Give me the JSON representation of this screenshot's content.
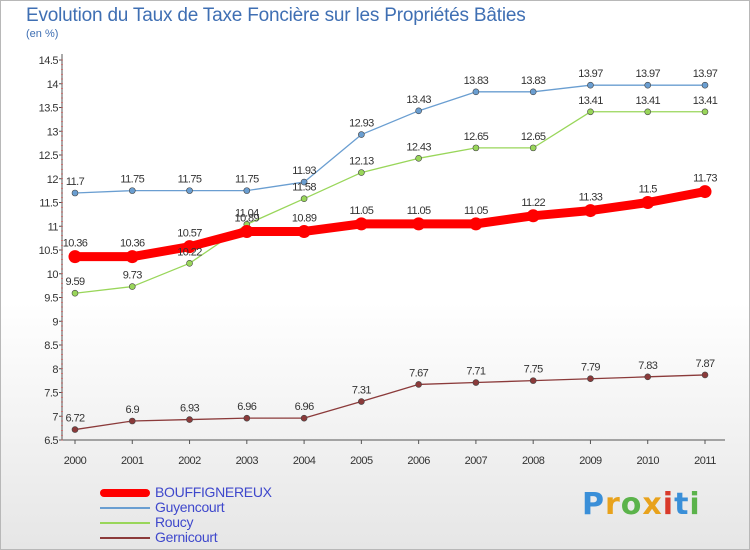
{
  "title": "Evolution du Taux de Taxe Foncière sur les Propriétés Bâties",
  "subtitle": "(en %)",
  "logo": {
    "text": "Proxiti",
    "colors": [
      "#3a8fd8",
      "#e8a21c",
      "#5bb34b",
      "#e8a21c",
      "#d93a2b",
      "#3a8fd8",
      "#5bb34b"
    ]
  },
  "chart_data": {
    "type": "line",
    "title": "Evolution du Taux de Taxe Foncière sur les Propriétés Bâties",
    "ylabel": "(en %)",
    "xlabel": "",
    "ylim": [
      6.5,
      14.5
    ],
    "grid": false,
    "legend_position": "bottom",
    "x": [
      "2000",
      "2001",
      "2002",
      "2003",
      "2004",
      "2005",
      "2006",
      "2007",
      "2008",
      "2009",
      "2010",
      "2011"
    ],
    "y_ticks": [
      "6.5",
      "7",
      "7.5",
      "8",
      "8.5",
      "9",
      "9.5",
      "10",
      "10.5",
      "11",
      "11.5",
      "12",
      "12.5",
      "13",
      "13.5",
      "14",
      "14.5"
    ],
    "series": [
      {
        "name": "BOUFFIGNEREUX",
        "color": "#ff0000",
        "values": [
          10.36,
          10.36,
          10.57,
          10.89,
          10.89,
          11.05,
          11.05,
          11.05,
          11.22,
          11.33,
          11.5,
          11.73
        ],
        "labels": [
          "10.36",
          "10.36",
          "10.57",
          "10.89",
          "10.89",
          "11.05",
          "11.05",
          "11.05",
          "11.22",
          "11.33",
          "11.5",
          "11.73"
        ]
      },
      {
        "name": "Guyencourt",
        "color": "#6a9ed1",
        "values": [
          11.7,
          11.75,
          11.75,
          11.75,
          11.93,
          12.93,
          13.43,
          13.83,
          13.83,
          13.97,
          13.97,
          13.97
        ],
        "labels": [
          "11.7",
          "11.75",
          "11.75",
          "11.75",
          "11.93",
          "12.93",
          "13.43",
          "13.83",
          "13.83",
          "13.97",
          "13.97",
          "13.97"
        ]
      },
      {
        "name": "Roucy",
        "color": "#99d65a",
        "values": [
          9.59,
          9.73,
          10.22,
          11.04,
          11.58,
          12.13,
          12.43,
          12.65,
          12.65,
          13.41,
          13.41,
          13.41
        ],
        "labels": [
          "9.59",
          "9.73",
          "10.22",
          "11.04",
          "11.58",
          "12.13",
          "12.43",
          "12.65",
          "12.65",
          "13.41",
          "13.41",
          "13.41"
        ]
      },
      {
        "name": "Gernicourt",
        "color": "#8b3a3a",
        "values": [
          6.72,
          6.9,
          6.93,
          6.96,
          6.96,
          7.31,
          7.67,
          7.71,
          7.75,
          7.79,
          7.83,
          7.87
        ],
        "labels": [
          "6.72",
          "6.9",
          "6.93",
          "6.96",
          "6.96",
          "7.31",
          "7.67",
          "7.71",
          "7.75",
          "7.79",
          "7.83",
          "7.87"
        ]
      }
    ]
  }
}
